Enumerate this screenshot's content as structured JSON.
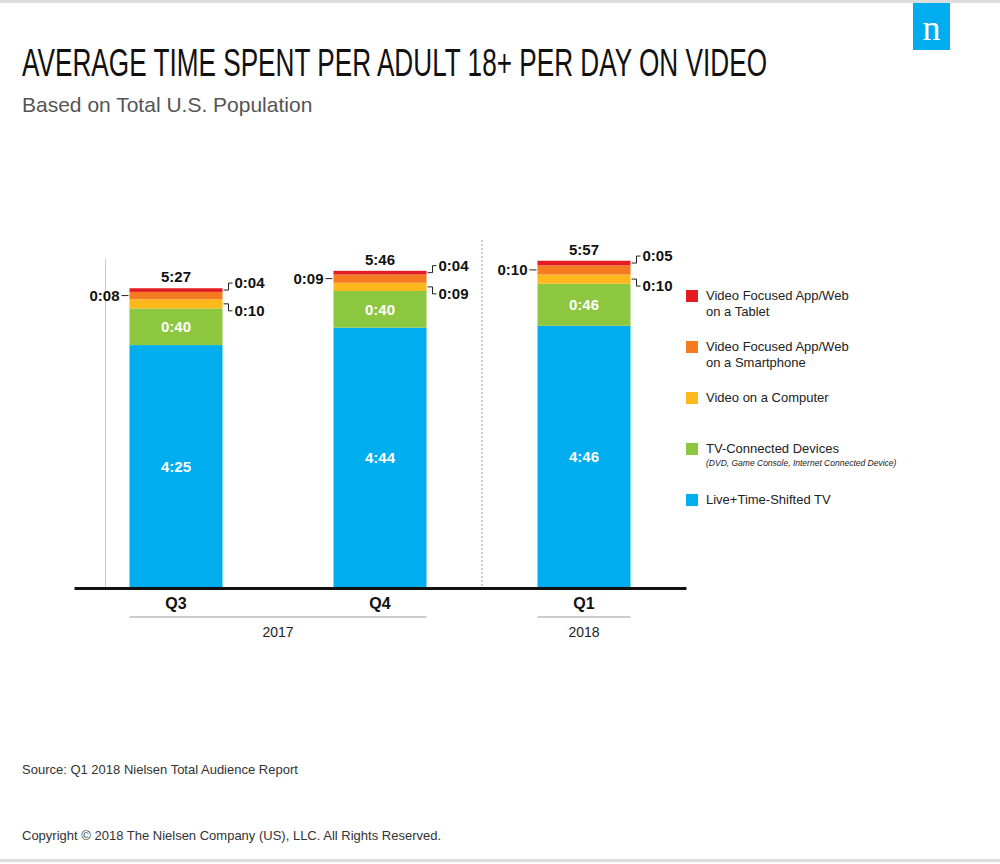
{
  "chart_data": {
    "type": "bar",
    "stacked": true,
    "data_labels": true,
    "tick_labels": false,
    "grid": false,
    "legend": "right",
    "title": "AVERAGE TIME SPENT PER ADULT 18+ PER DAY ON VIDEO",
    "subtitle": "Based on Total U.S. Population",
    "categories": [
      "Q3",
      "Q4",
      "Q1"
    ],
    "x_groups": [
      "2017",
      "2017",
      "2018"
    ],
    "ylim": [
      0,
      360
    ],
    "yticks": [],
    "series": [
      {
        "name": "Live+Time-Shifted TV",
        "color": "#00aeef",
        "values": [
          265,
          284,
          286
        ],
        "value_labels": [
          "4:25",
          "4:44",
          "4:46"
        ]
      },
      {
        "name": "TV-Connected Devices",
        "note": "(DVD, Game Console, Internet Connected Device)",
        "color": "#8dc63f",
        "values": [
          40,
          40,
          46
        ],
        "value_labels": [
          "0:40",
          "0:40",
          "0:46"
        ]
      },
      {
        "name": "Video on a Computer",
        "color": "#ffb81c",
        "values": [
          10,
          9,
          10
        ],
        "value_labels": [
          "0:10",
          "0:09",
          "0:10"
        ]
      },
      {
        "name": "Video Focused App/Web on a Smartphone",
        "color": "#f47b20",
        "values": [
          8,
          9,
          10
        ],
        "value_labels": [
          "0:08",
          "0:09",
          "0:10"
        ]
      },
      {
        "name": "Video Focused App/Web on a Tablet",
        "color": "#e31b23",
        "values": [
          4,
          4,
          5
        ],
        "value_labels": [
          "0:04",
          "0:04",
          "0:05"
        ]
      }
    ],
    "totals": [
      327,
      346,
      357
    ],
    "total_labels": [
      "5:27",
      "5:46",
      "5:57"
    ],
    "source": "Source: Q1 2018 Nielsen Total Audience Report",
    "copyright": "Copyright © 2018 The Nielsen Company (US), LLC. All Rights Reserved.",
    "logo": "n"
  }
}
